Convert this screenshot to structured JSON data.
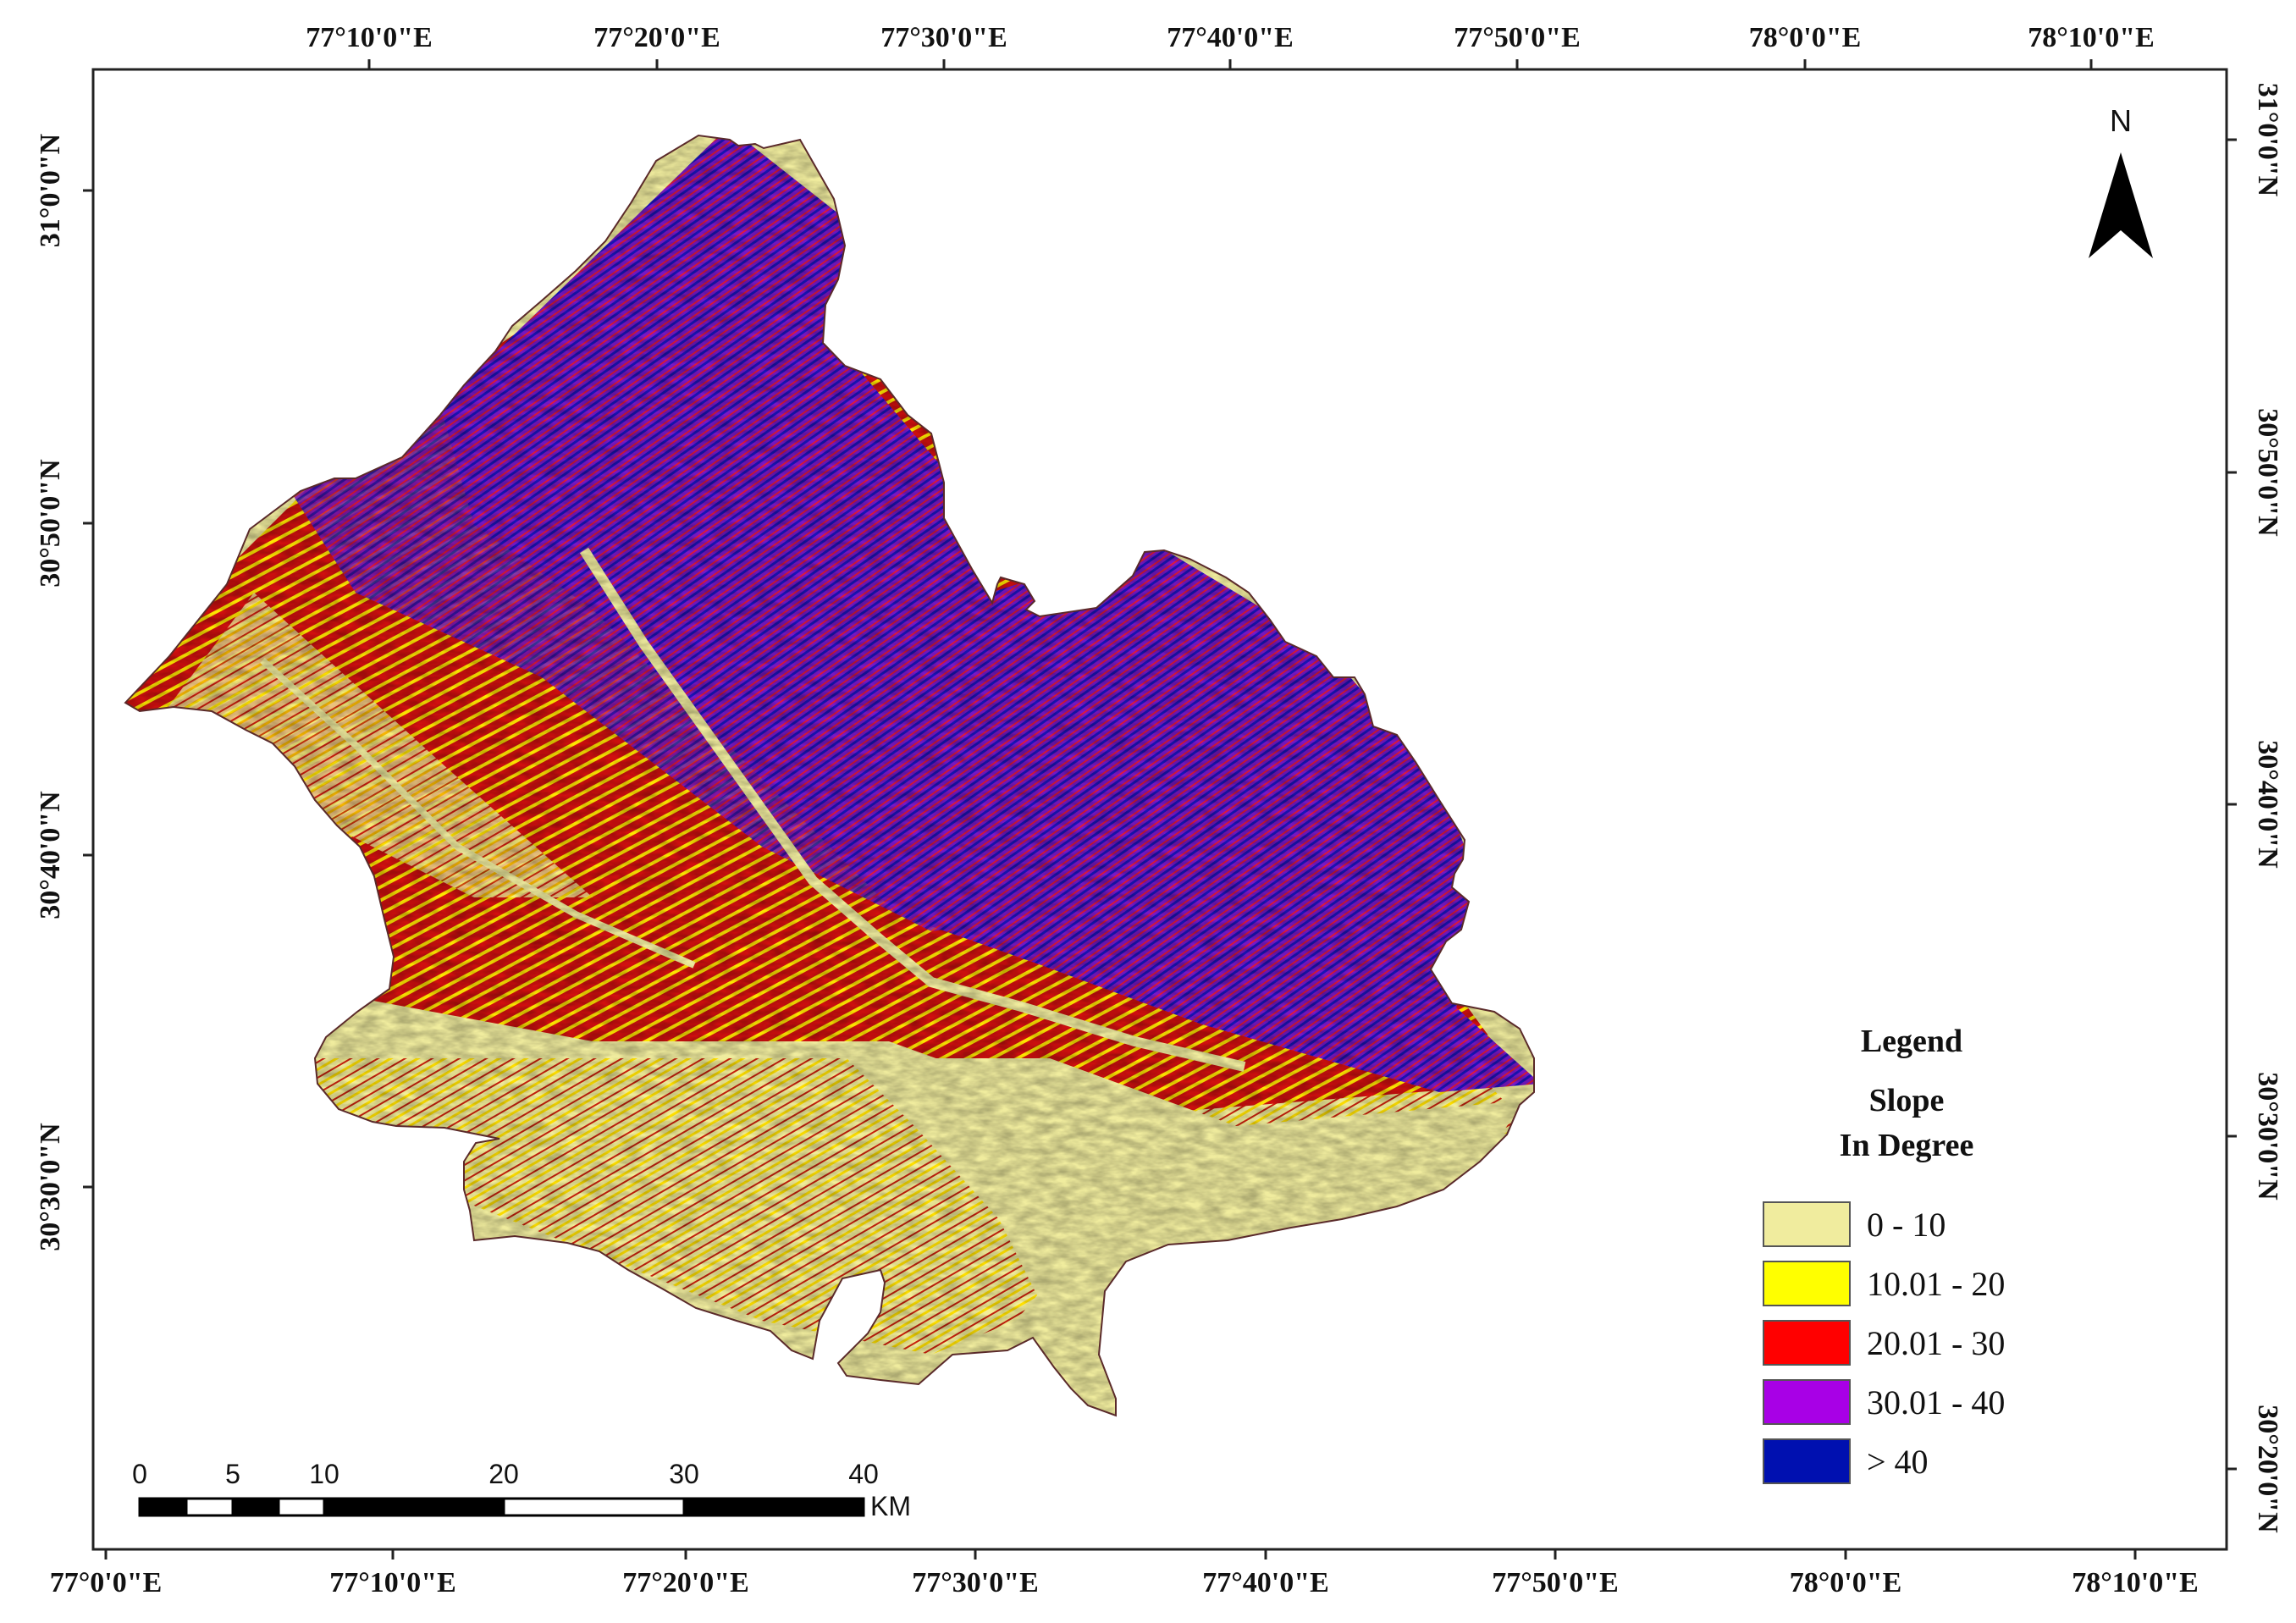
{
  "map": {
    "top_ticks": [
      "77°10'0\"E",
      "77°20'0\"E",
      "77°30'0\"E",
      "77°40'0\"E",
      "77°50'0\"E",
      "78°0'0\"E",
      "78°10'0\"E"
    ],
    "bottom_ticks": [
      "77°0'0\"E",
      "77°10'0\"E",
      "77°20'0\"E",
      "77°30'0\"E",
      "77°40'0\"E",
      "77°50'0\"E",
      "78°0'0\"E",
      "78°10'0\"E"
    ],
    "left_ticks": [
      "31°0'0\"N",
      "30°50'0\"N",
      "30°40'0\"N",
      "30°30'0\"N"
    ],
    "right_ticks": [
      "31°0'0\"N",
      "30°50'0\"N",
      "30°40'0\"N",
      "30°30'0\"N",
      "30°20'0\"N"
    ]
  },
  "north_arrow": {
    "label": "N",
    "icon": "north-arrow-icon"
  },
  "legend": {
    "title": "Legend",
    "subtitle_line1": "Slope",
    "subtitle_line2": "In Degree",
    "items": [
      {
        "label": "0 - 10",
        "color": "#f0ec9e"
      },
      {
        "label": "10.01 - 20",
        "color": "#ffff00"
      },
      {
        "label": "20.01 - 30",
        "color": "#ff0000"
      },
      {
        "label": "30.01 - 40",
        "color": "#a800e6"
      },
      {
        "label": "> 40",
        "color": "#0010b0"
      }
    ]
  },
  "scale_bar": {
    "labels": [
      "0",
      "5",
      "10",
      "20",
      "30",
      "40"
    ],
    "unit": "KM"
  }
}
